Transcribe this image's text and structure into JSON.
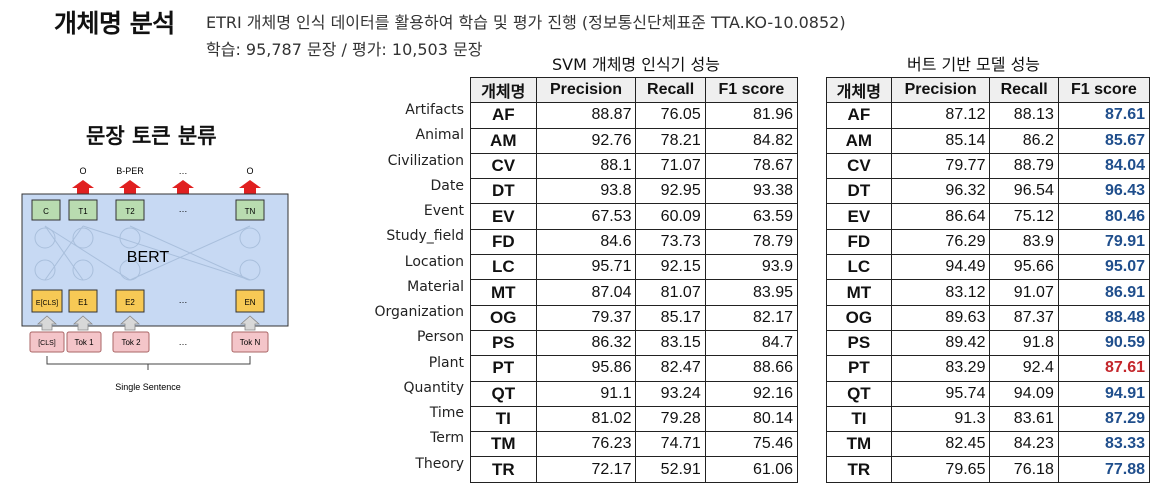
{
  "header": {
    "title": "개체명 분석",
    "desc_line1": "ETRI 개체명 인식 데이터를 활용하여 학습 및 평가 진행 (정보통신단체표준 TTA.KO-10.0852)",
    "desc_line2": "학습: 95,787 문장 / 평가: 10,503 문장"
  },
  "diagram": {
    "title": "문장 토큰 분류",
    "outputs": [
      "O",
      "B-PER",
      "…",
      "O"
    ],
    "top_tokens": [
      "C",
      "T1",
      "T2",
      "…",
      "TN"
    ],
    "model": "BERT",
    "embed_tokens": [
      "E[CLS]",
      "E1",
      "E2",
      "…",
      "EN"
    ],
    "input_tokens": [
      "[CLS]",
      "Tok 1",
      "Tok 2",
      "…",
      "Tok N"
    ],
    "caption": "Single Sentence"
  },
  "row_labels": [
    "Artifacts",
    "Animal",
    "Civilization",
    "Date",
    "Event",
    "Study_field",
    "Location",
    "Material",
    "Organization",
    "Person",
    "Plant",
    "Quantity",
    "Time",
    "Term",
    "Theory"
  ],
  "svm": {
    "caption": "SVM 개체명 인식기 성능",
    "headers": [
      "개체명",
      "Precision",
      "Recall",
      "F1 score"
    ],
    "rows": [
      [
        "AF",
        "88.87",
        "76.05",
        "81.96"
      ],
      [
        "AM",
        "92.76",
        "78.21",
        "84.82"
      ],
      [
        "CV",
        "88.1",
        "71.07",
        "78.67"
      ],
      [
        "DT",
        "93.8",
        "92.95",
        "93.38"
      ],
      [
        "EV",
        "67.53",
        "60.09",
        "63.59"
      ],
      [
        "FD",
        "84.6",
        "73.73",
        "78.79"
      ],
      [
        "LC",
        "95.71",
        "92.15",
        "93.9"
      ],
      [
        "MT",
        "87.04",
        "81.07",
        "83.95"
      ],
      [
        "OG",
        "79.37",
        "85.17",
        "82.17"
      ],
      [
        "PS",
        "86.32",
        "83.15",
        "84.7"
      ],
      [
        "PT",
        "95.86",
        "82.47",
        "88.66"
      ],
      [
        "QT",
        "91.1",
        "93.24",
        "92.16"
      ],
      [
        "TI",
        "81.02",
        "79.28",
        "80.14"
      ],
      [
        "TM",
        "76.23",
        "74.71",
        "75.46"
      ],
      [
        "TR",
        "72.17",
        "52.91",
        "61.06"
      ]
    ]
  },
  "bert": {
    "caption": "버트 기반 모델 성능",
    "headers": [
      "개체명",
      "Precision",
      "Recall",
      "F1 score"
    ],
    "highlight_blue": "#1f4e8c",
    "highlight_red": "#c4262b",
    "rows": [
      [
        "AF",
        "87.12",
        "88.13",
        "87.61"
      ],
      [
        "AM",
        "85.14",
        "86.2",
        "85.67"
      ],
      [
        "CV",
        "79.77",
        "88.79",
        "84.04"
      ],
      [
        "DT",
        "96.32",
        "96.54",
        "96.43"
      ],
      [
        "EV",
        "86.64",
        "75.12",
        "80.46"
      ],
      [
        "FD",
        "76.29",
        "83.9",
        "79.91"
      ],
      [
        "LC",
        "94.49",
        "95.66",
        "95.07"
      ],
      [
        "MT",
        "83.12",
        "91.07",
        "86.91"
      ],
      [
        "OG",
        "89.63",
        "87.37",
        "88.48"
      ],
      [
        "PS",
        "89.42",
        "91.8",
        "90.59"
      ],
      [
        "PT",
        "83.29",
        "92.4",
        "87.61"
      ],
      [
        "QT",
        "95.74",
        "94.09",
        "94.91"
      ],
      [
        "TI",
        "91.3",
        "83.61",
        "87.29"
      ],
      [
        "TM",
        "82.45",
        "84.23",
        "83.33"
      ],
      [
        "TR",
        "79.65",
        "76.18",
        "77.88"
      ]
    ],
    "f1_colors": [
      "blue",
      "blue",
      "blue",
      "blue",
      "blue",
      "blue",
      "blue",
      "blue",
      "blue",
      "blue",
      "red",
      "blue",
      "blue",
      "blue",
      "blue"
    ]
  }
}
